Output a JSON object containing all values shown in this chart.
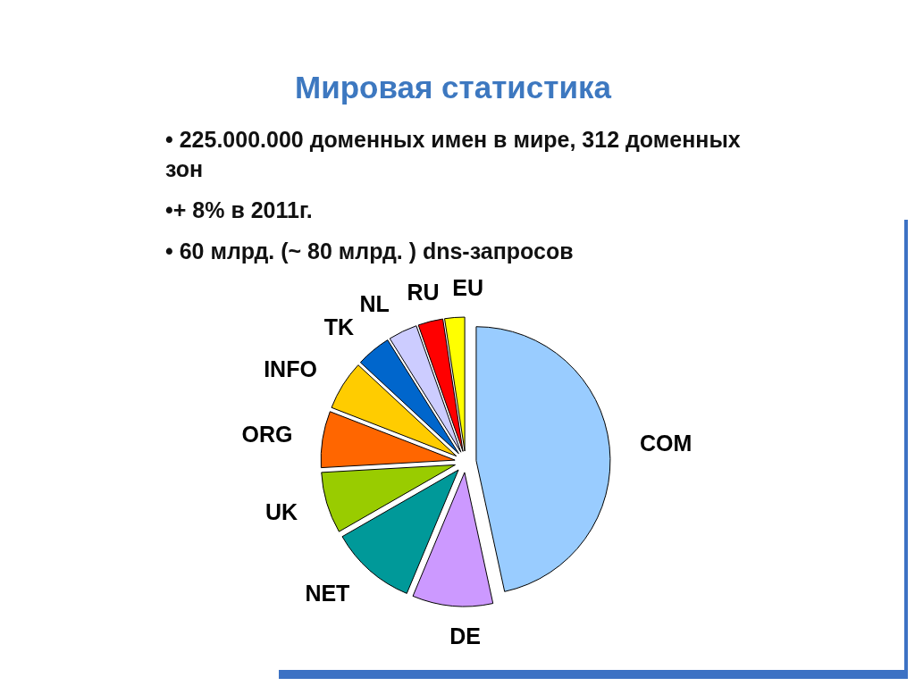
{
  "chart_data": {
    "type": "pie",
    "title": "Мировая статистика",
    "annotations": [
      "• 225.000.000 доменных имен в мире, 312 доменных зон",
      "•+ 8% в 2011г.",
      "• 60 млрд. (~ 80 млрд. ) dns-запросов"
    ],
    "categories": [
      "COM",
      "DE",
      "NET",
      "UK",
      "ORG",
      "INFO",
      "TK",
      "NL",
      "RU",
      "EU"
    ],
    "values": [
      46.6,
      9.7,
      10.4,
      7.4,
      6.8,
      6.0,
      4.2,
      3.5,
      3.0,
      2.4
    ],
    "colors": [
      "#99ccff",
      "#cc99ff",
      "#009999",
      "#99cc00",
      "#ff6600",
      "#ffcc00",
      "#0066cc",
      "#ccccff",
      "#ff0000",
      "#ffff00"
    ]
  }
}
